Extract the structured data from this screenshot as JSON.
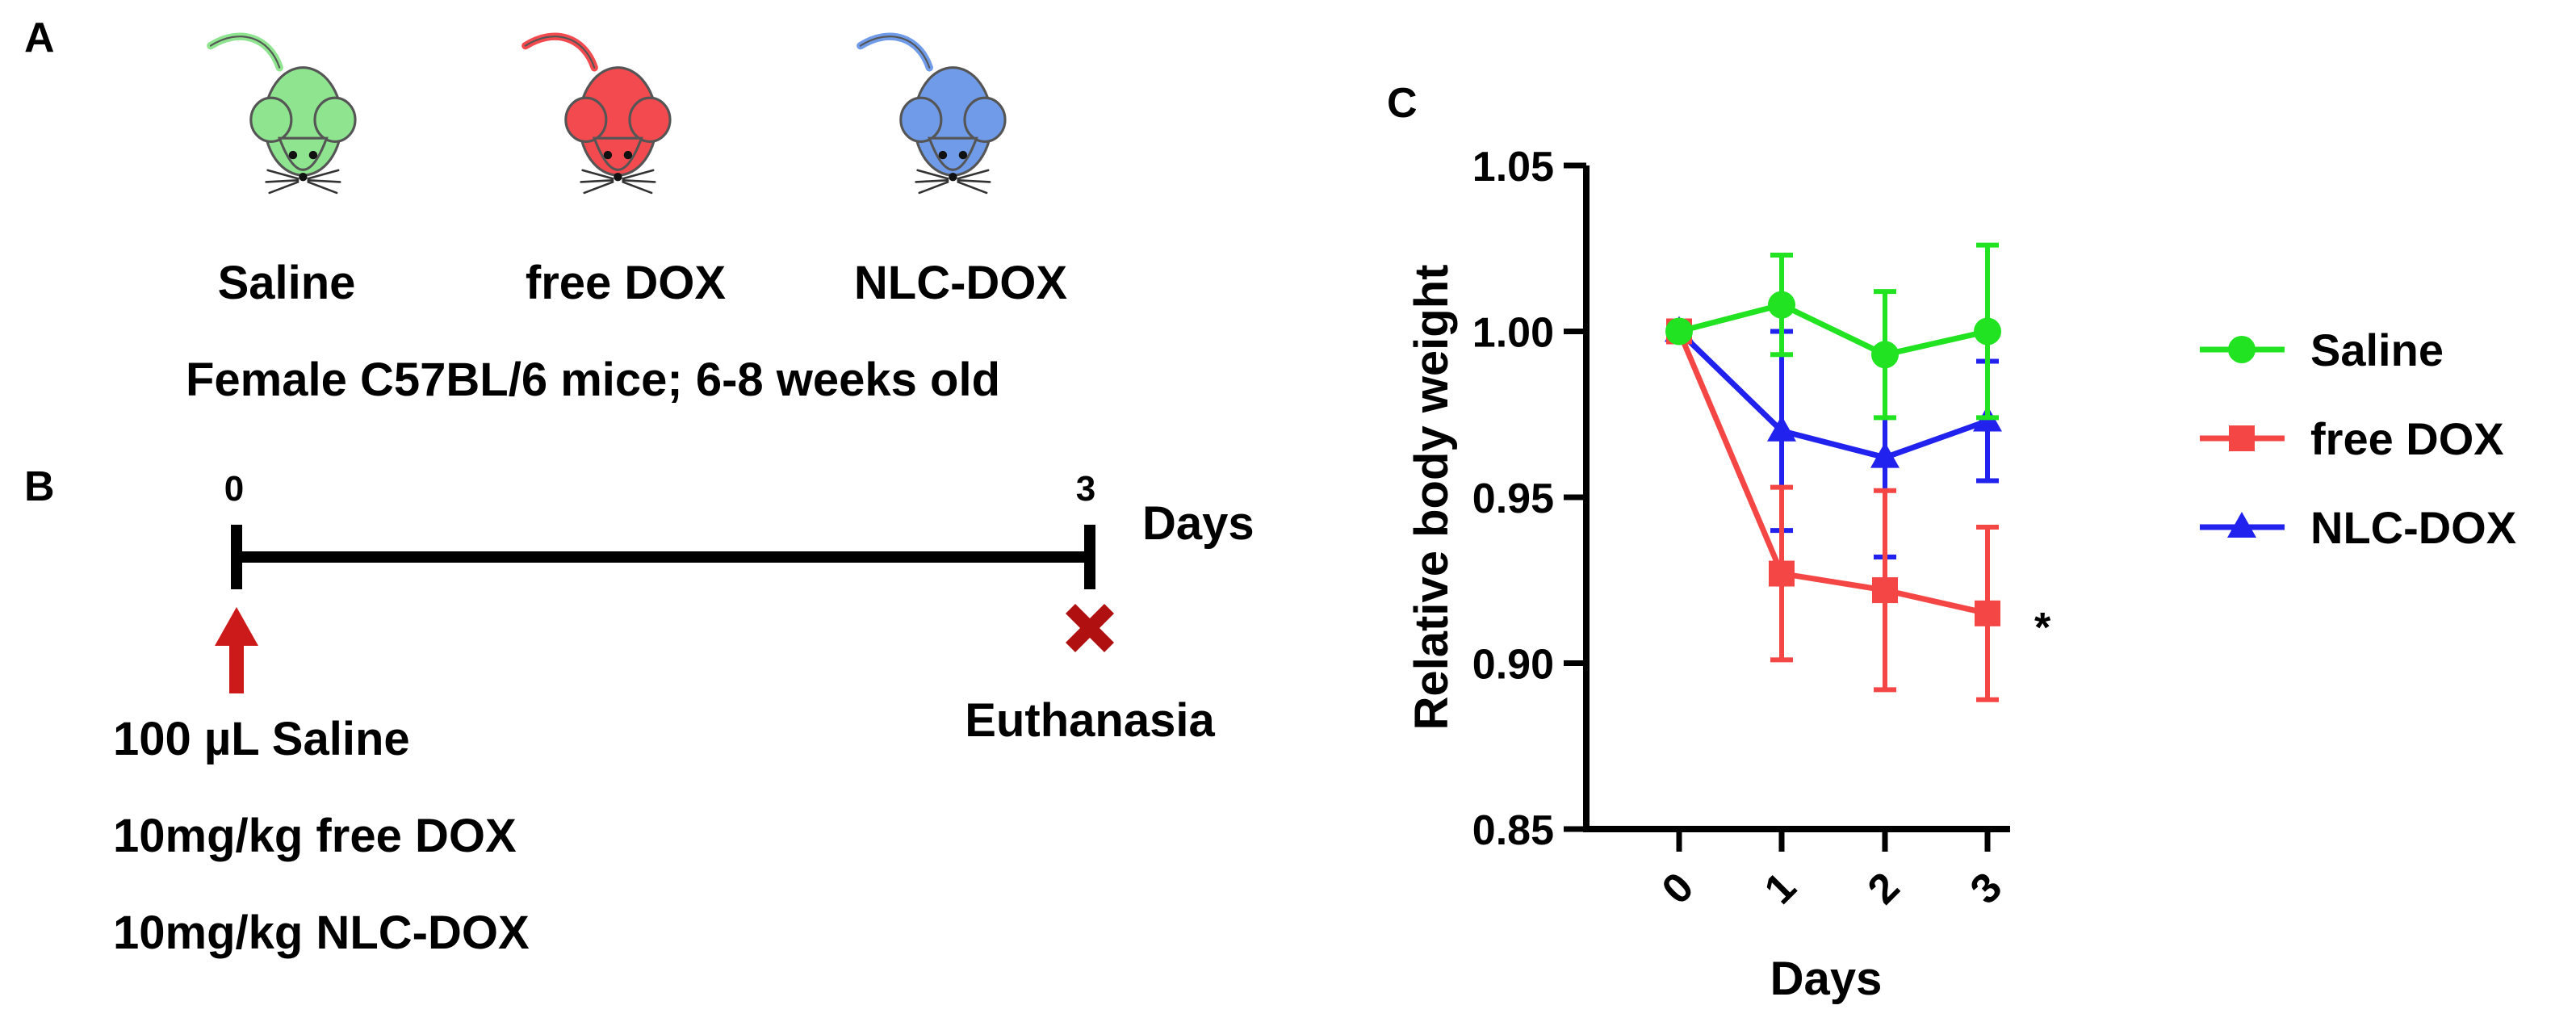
{
  "panels": {
    "a": {
      "label": "A",
      "groups": [
        {
          "name": "Saline",
          "color": "#8ee48f"
        },
        {
          "name": "free DOX",
          "color": "#f24a4e"
        },
        {
          "name": "NLC-DOX",
          "color": "#6f9be8"
        }
      ],
      "caption": "Female C57BL/6 mice; 6-8 weeks old"
    },
    "b": {
      "label": "B",
      "start_day": "0",
      "end_day": "3",
      "unit": "Days",
      "end_event": "Euthanasia",
      "doses": [
        "100 µL Saline",
        "10mg/kg free DOX",
        "10mg/kg NLC-DOX"
      ]
    },
    "c": {
      "label": "C",
      "significance_mark": "*"
    }
  },
  "chart_data": {
    "type": "line",
    "title": "",
    "xlabel": "Days",
    "ylabel": "Relative body weight",
    "x": [
      0,
      1,
      2,
      3
    ],
    "xticks": [
      "0",
      "1",
      "2",
      "3"
    ],
    "ylim": [
      0.85,
      1.05
    ],
    "yticks": [
      "0.85",
      "0.90",
      "0.95",
      "1.00",
      "1.05"
    ],
    "legend_position": "right",
    "series": [
      {
        "name": "Saline",
        "color": "#22e322",
        "marker": "circle",
        "values": [
          1.0,
          1.008,
          0.993,
          1.0
        ],
        "errors": [
          0,
          0.015,
          0.019,
          0.026
        ]
      },
      {
        "name": "free DOX",
        "color": "#f54646",
        "marker": "square",
        "values": [
          1.0,
          0.927,
          0.922,
          0.915
        ],
        "errors": [
          0,
          0.026,
          0.03,
          0.026
        ]
      },
      {
        "name": "NLC-DOX",
        "color": "#2222ee",
        "marker": "triangle",
        "values": [
          1.0,
          0.97,
          0.962,
          0.973
        ],
        "errors": [
          0,
          0.03,
          0.03,
          0.018
        ]
      }
    ]
  }
}
